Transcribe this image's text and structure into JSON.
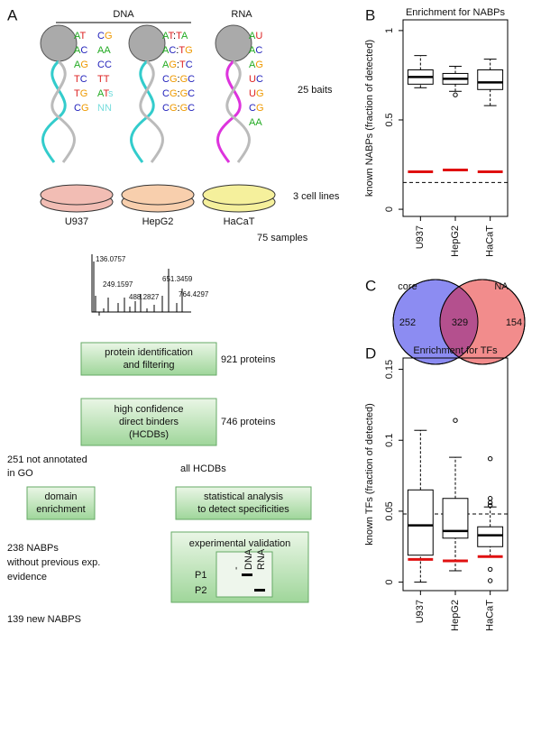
{
  "diagram": {
    "panel": "A",
    "dna_label": "DNA",
    "rna_label": "RNA",
    "bait_columns": [
      [
        "AT",
        "AC",
        "AG",
        "TC",
        "TG",
        "CG"
      ],
      [
        "CG",
        "AA",
        "CC",
        "TT",
        "ATs",
        "NN"
      ],
      [
        "AT:TA",
        "AC:TG",
        "AG:TC",
        "CG:GC",
        "CG:GC",
        "CG:GC"
      ],
      [
        "AU",
        "AC",
        "AG",
        "UC",
        "UG",
        "CG",
        "AA"
      ]
    ],
    "baits": "25 baits",
    "cell_lines": [
      "U937",
      "HepG2",
      "HaCaT"
    ],
    "cell_line_count": "3 cell lines",
    "samples": "75 samples",
    "spectrum_labels": [
      "136.0757",
      "249.1597",
      "488.2827",
      "651.3459",
      "764.4297"
    ],
    "identification": [
      "protein identification",
      "and filtering"
    ],
    "identified": "921 proteins",
    "hcdb": [
      "high confidence",
      "direct binders",
      "(HCDBs)"
    ],
    "hcdb_count": "746 proteins",
    "not_annotated": [
      "251 not annotated",
      "in GO"
    ],
    "all_hcdbs": "all HCDBs",
    "domain": [
      "domain",
      "enrichment"
    ],
    "statistical": [
      "statistical analysis",
      "to detect specificities"
    ],
    "nabps": [
      "238 NABPs",
      "without previous exp.",
      "evidence"
    ],
    "validation": "experimental validation",
    "validation_columns": [
      "-",
      "DNA",
      "RNA"
    ],
    "validation_rows": [
      "P1",
      "P2"
    ],
    "new_nabps": "139 new NABPS"
  },
  "chart_data": [
    {
      "type": "box",
      "panel": "B",
      "title": "Enrichment for NABPs",
      "y_label": "known NABPs (fraction of detected)",
      "categories": [
        "U937",
        "HepG2",
        "HaCaT"
      ],
      "boxes": [
        {
          "low": 0.68,
          "q1": 0.7,
          "median": 0.74,
          "q3": 0.78,
          "high": 0.86,
          "outliers": []
        },
        {
          "low": 0.66,
          "q1": 0.7,
          "median": 0.73,
          "q3": 0.76,
          "high": 0.8,
          "outliers": [
            0.64
          ]
        },
        {
          "low": 0.58,
          "q1": 0.67,
          "median": 0.71,
          "q3": 0.78,
          "high": 0.84,
          "outliers": []
        }
      ],
      "reference_values": [
        0.21,
        0.22,
        0.21
      ],
      "reference_color": "#e01010",
      "baseline": 0.15,
      "ylim": [
        -0.04,
        1.06
      ],
      "yticks": [
        0,
        0.5,
        1
      ]
    },
    {
      "type": "venn",
      "panel": "C",
      "sets": [
        "core",
        "NA"
      ],
      "colors": [
        "#8c8cf2",
        "#f28c8c"
      ],
      "overlap_color": "#b4508e",
      "values": [
        252,
        329,
        154
      ]
    },
    {
      "type": "box",
      "panel": "D",
      "title": "Enrichment for TFs",
      "y_label": "known TFs (fraction of detected)",
      "categories": [
        "U937",
        "HepG2",
        "HaCaT"
      ],
      "boxes": [
        {
          "low": 0,
          "q1": 0.019,
          "median": 0.04,
          "q3": 0.065,
          "high": 0.107,
          "outliers": []
        },
        {
          "low": 0.008,
          "q1": 0.031,
          "median": 0.036,
          "q3": 0.059,
          "high": 0.088,
          "outliers": [
            0.114
          ]
        },
        {
          "low": 0.018,
          "q1": 0.025,
          "median": 0.033,
          "q3": 0.039,
          "high": 0.053,
          "outliers": [
            0.087,
            0.059,
            0.056,
            0.054,
            0.009,
            0.001
          ]
        }
      ],
      "reference_values": [
        0.016,
        0.015,
        0.018
      ],
      "reference_color": "#e01010",
      "baseline": 0.048,
      "ylim": [
        -0.006,
        0.158
      ],
      "yticks": [
        0,
        0.05,
        0.1,
        0.15
      ]
    }
  ]
}
